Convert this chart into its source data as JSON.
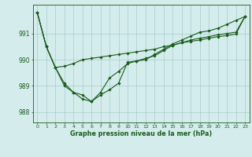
{
  "title": "Graphe pression niveau de la mer (hPa)",
  "background_color": "#d4ecec",
  "grid_color": "#a8cccc",
  "line_color": "#1a5c1a",
  "marker_color": "#1a5c1a",
  "xlim": [
    -0.5,
    23.5
  ],
  "ylim": [
    987.6,
    992.1
  ],
  "yticks": [
    988,
    989,
    990,
    991
  ],
  "xticks": [
    0,
    1,
    2,
    3,
    4,
    5,
    6,
    7,
    8,
    9,
    10,
    11,
    12,
    13,
    14,
    15,
    16,
    17,
    18,
    19,
    20,
    21,
    22,
    23
  ],
  "series": [
    [
      991.8,
      990.5,
      989.7,
      989.0,
      988.75,
      988.5,
      988.4,
      988.65,
      988.85,
      989.1,
      989.9,
      989.95,
      990.0,
      990.2,
      990.4,
      990.6,
      990.75,
      990.9,
      991.05,
      991.1,
      991.2,
      991.35,
      991.5,
      991.65
    ],
    [
      991.8,
      990.5,
      989.7,
      989.75,
      989.85,
      990.0,
      990.05,
      990.1,
      990.15,
      990.2,
      990.25,
      990.3,
      990.35,
      990.4,
      990.5,
      990.55,
      990.65,
      990.7,
      990.75,
      990.82,
      990.88,
      990.92,
      990.98,
      991.65
    ],
    [
      991.8,
      990.5,
      989.7,
      989.1,
      988.75,
      988.65,
      988.4,
      988.75,
      989.3,
      989.55,
      989.85,
      989.95,
      990.05,
      990.15,
      990.35,
      990.55,
      990.65,
      990.75,
      990.82,
      990.88,
      990.95,
      991.0,
      991.05,
      991.65
    ]
  ],
  "figsize": [
    3.2,
    2.0
  ],
  "dpi": 100
}
